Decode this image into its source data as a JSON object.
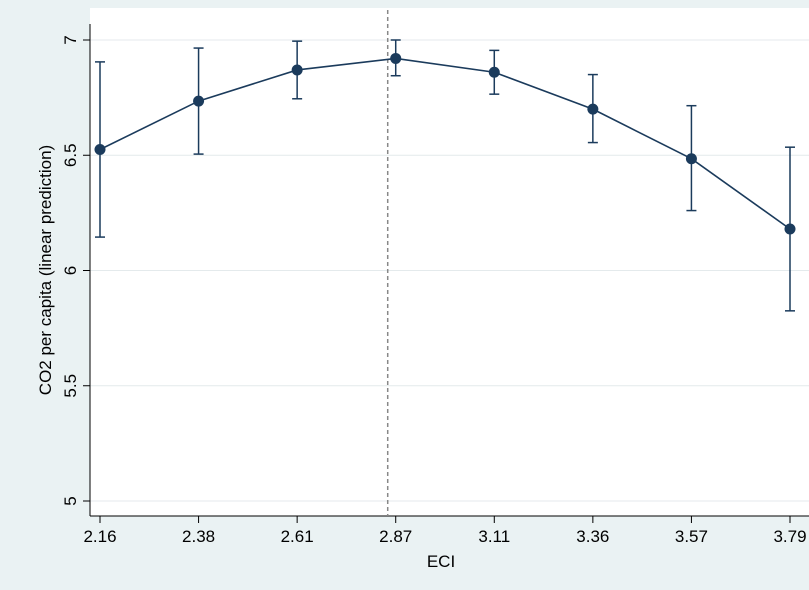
{
  "chart_data": {
    "type": "line",
    "title": "",
    "xlabel": "ECI",
    "ylabel": "CO2 per capita (linear prediction)",
    "x_ticks": [
      "2.16",
      "2.38",
      "2.61",
      "2.87",
      "3.11",
      "3.36",
      "3.57",
      "3.79"
    ],
    "y_ticks": [
      "5",
      "5.5",
      "6",
      "6.5",
      "7"
    ],
    "ylim": [
      5,
      7
    ],
    "grid": true,
    "reference_line": {
      "x": "2.87",
      "style": "dashed"
    },
    "series": [
      {
        "x": [
          2.16,
          2.38,
          2.61,
          2.87,
          3.11,
          3.36,
          3.57,
          3.79
        ],
        "values": [
          6.525,
          6.735,
          6.87,
          6.92,
          6.86,
          6.7,
          6.485,
          6.18
        ],
        "ci_upper": [
          6.905,
          6.965,
          6.995,
          7.0,
          6.955,
          6.85,
          6.715,
          6.535
        ],
        "ci_lower": [
          6.145,
          6.505,
          6.745,
          6.845,
          6.765,
          6.555,
          6.26,
          5.825
        ]
      }
    ],
    "colors": {
      "series": "#1b3b5c",
      "grid": "#e4eaec",
      "frame": "#eaf2f3",
      "plot_bg": "#ffffff",
      "refline": "#888888"
    }
  }
}
